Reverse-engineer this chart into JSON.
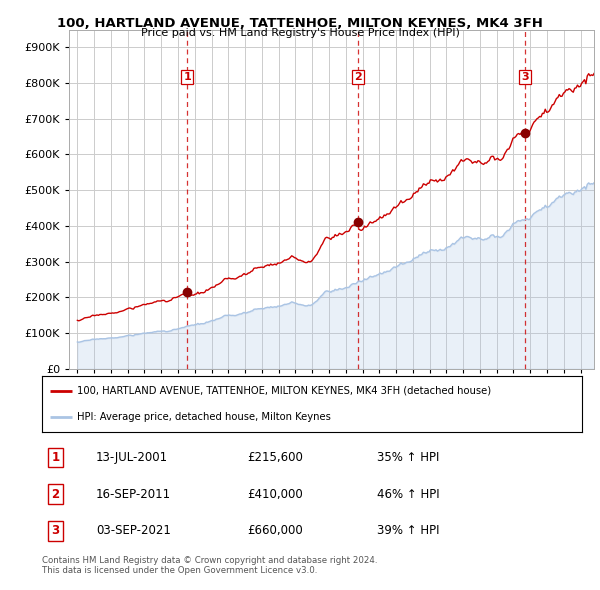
{
  "title": "100, HARTLAND AVENUE, TATTENHOE, MILTON KEYNES, MK4 3FH",
  "subtitle": "Price paid vs. HM Land Registry's House Price Index (HPI)",
  "legend_line1": "100, HARTLAND AVENUE, TATTENHOE, MILTON KEYNES, MK4 3FH (detached house)",
  "legend_line2": "HPI: Average price, detached house, Milton Keynes",
  "footer1": "Contains HM Land Registry data © Crown copyright and database right 2024.",
  "footer2": "This data is licensed under the Open Government Licence v3.0.",
  "sales": [
    {
      "num": "1",
      "date": "13-JUL-2001",
      "price": "£215,600",
      "hpi": "35% ↑ HPI"
    },
    {
      "num": "2",
      "date": "16-SEP-2011",
      "price": "£410,000",
      "hpi": "46% ↑ HPI"
    },
    {
      "num": "3",
      "date": "03-SEP-2021",
      "price": "£660,000",
      "hpi": "39% ↑ HPI"
    }
  ],
  "sale_years": [
    2001.54,
    2011.71,
    2021.67
  ],
  "sale_prices": [
    215600,
    410000,
    660000
  ],
  "hpi_color": "#aac4e4",
  "price_color": "#cc0000",
  "dashed_color": "#cc0000",
  "background_color": "#ffffff",
  "grid_color": "#cccccc",
  "ylim": [
    0,
    950000
  ],
  "xlim_start": 1994.5,
  "xlim_end": 2025.8
}
